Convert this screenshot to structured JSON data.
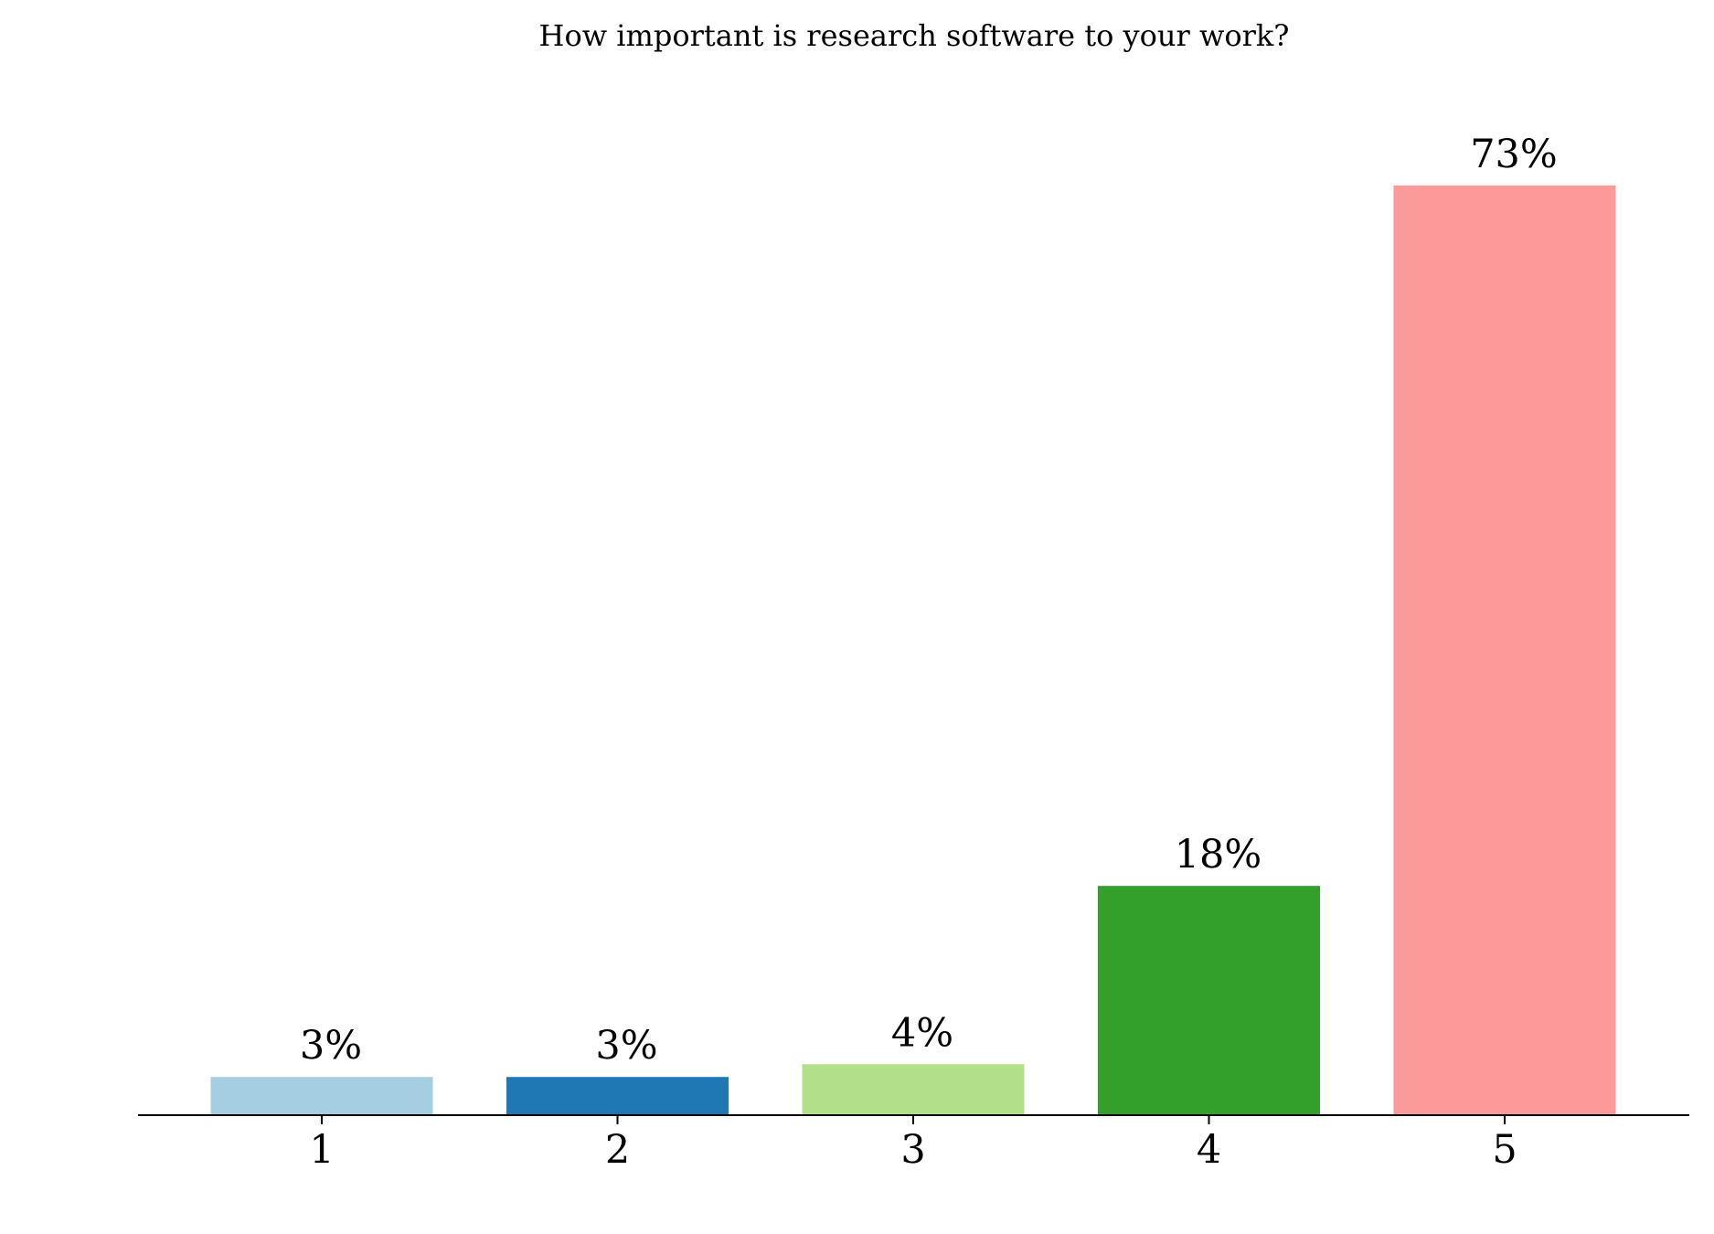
{
  "chart_data": {
    "type": "bar",
    "title": "How important is research software to your work?",
    "xlabel": "",
    "ylabel": "",
    "categories": [
      "1",
      "2",
      "3",
      "4",
      "5"
    ],
    "values": [
      3,
      3,
      4,
      18,
      73
    ],
    "value_labels": [
      "3%",
      "3%",
      "4%",
      "18%",
      "73%"
    ],
    "colors": [
      "#a6cee3",
      "#1f78b4",
      "#b2df8a",
      "#33a02c",
      "#fb9a99"
    ],
    "ylim": [
      0,
      73
    ],
    "grid": false,
    "legend": "none"
  }
}
